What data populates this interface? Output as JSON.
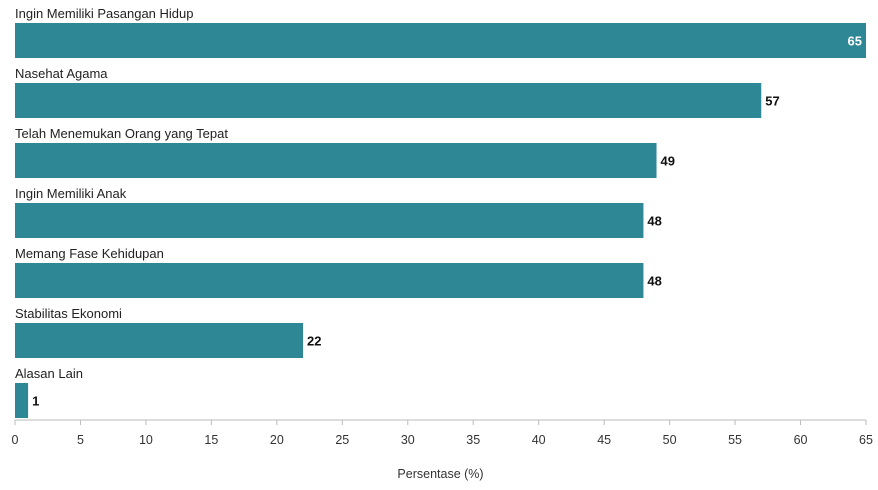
{
  "chart_data": {
    "type": "bar",
    "orientation": "horizontal",
    "categories": [
      "Ingin Memiliki Pasangan Hidup",
      "Nasehat Agama",
      "Telah Menemukan Orang yang Tepat",
      "Ingin Memiliki Anak",
      "Memang Fase Kehidupan",
      "Stabilitas Ekonomi",
      "Alasan Lain"
    ],
    "values": [
      65,
      57,
      49,
      48,
      48,
      22,
      1
    ],
    "xlabel": "Persentase (%)",
    "xlim": [
      0,
      65
    ],
    "xticks": [
      0,
      5,
      10,
      15,
      20,
      25,
      30,
      35,
      40,
      45,
      50,
      55,
      60,
      65
    ],
    "grid": false,
    "bar_color": "#2e8795",
    "axis_color": "#bbbbbb"
  }
}
